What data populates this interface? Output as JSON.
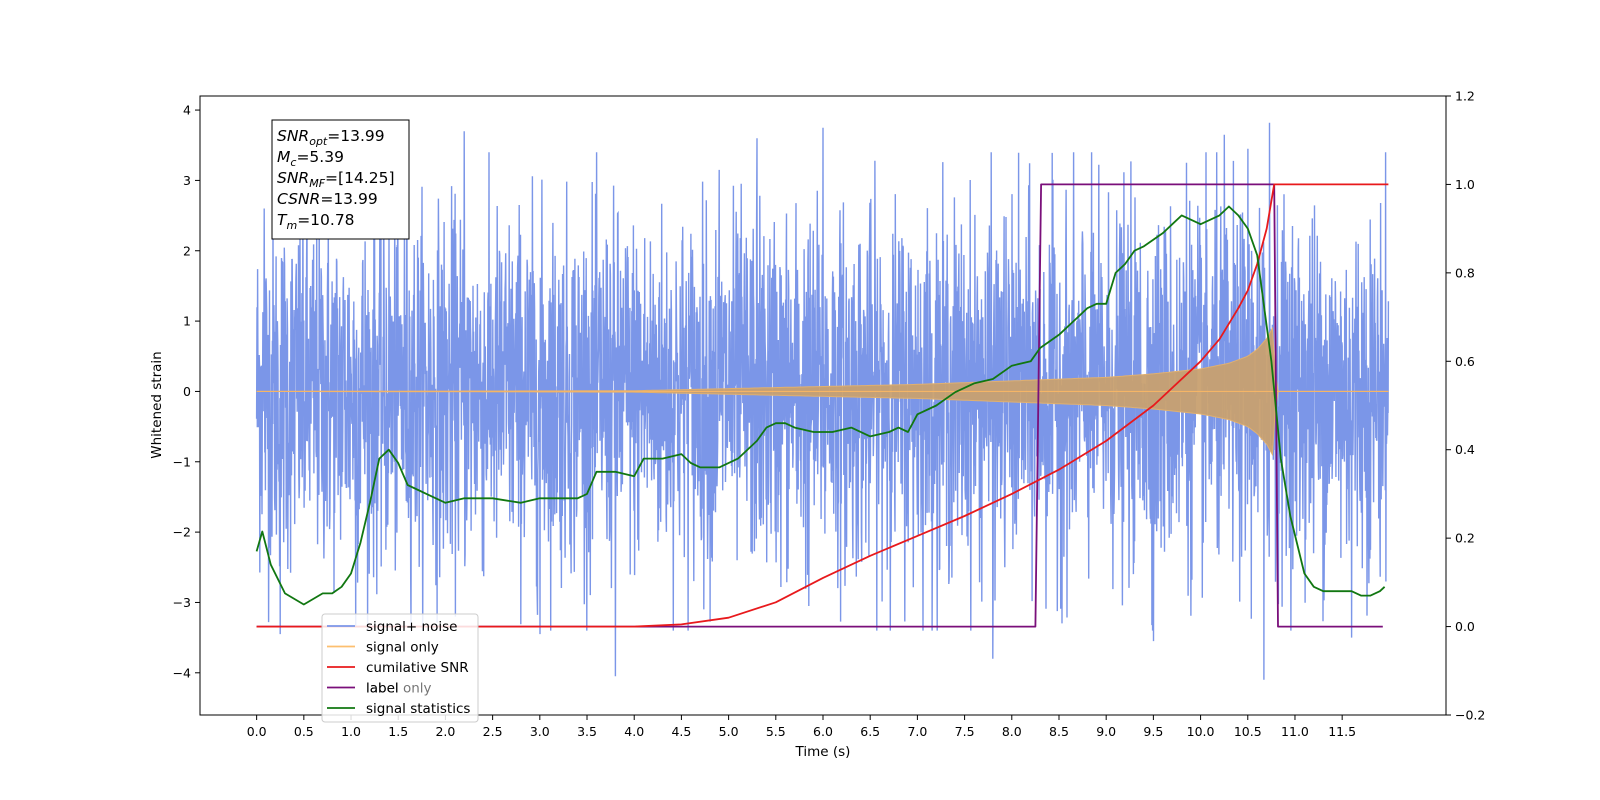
{
  "chart_data": {
    "type": "line",
    "xlabel": "Time (s)",
    "ylabel": "Whitened strain",
    "xlim": [
      -0.6,
      12.6
    ],
    "ylim": [
      -4.6,
      4.2
    ],
    "y2lim": [
      -0.2,
      1.2
    ],
    "x_ticks": [
      0.0,
      0.5,
      1.0,
      1.5,
      2.0,
      2.5,
      3.0,
      3.5,
      4.0,
      4.5,
      5.0,
      5.5,
      6.0,
      6.5,
      7.0,
      7.5,
      8.0,
      8.5,
      9.0,
      9.5,
      10.0,
      10.5,
      11.0,
      11.5
    ],
    "x_tick_labels": [
      "0.0",
      "0.5",
      "1.0",
      "1.5",
      "2.0",
      "2.5",
      "3.0",
      "3.5",
      "4.0",
      "4.5",
      "5.0",
      "5.5",
      "6.0",
      "6.5",
      "7.0",
      "7.5",
      "8.0",
      "8.5",
      "9.0",
      "9.5",
      "10.0",
      "10.5",
      "11.0",
      "11.5"
    ],
    "y_ticks": [
      -4,
      -3,
      -2,
      -1,
      0,
      1,
      2,
      3,
      4
    ],
    "y_tick_labels": [
      "−4",
      "−3",
      "−2",
      "−1",
      "0",
      "1",
      "2",
      "3",
      "4"
    ],
    "y2_ticks": [
      -0.2,
      0.0,
      0.2,
      0.4,
      0.6,
      0.8,
      1.0,
      1.2
    ],
    "y2_tick_labels": [
      "−0.2",
      "0.0",
      "0.2",
      "0.4",
      "0.6",
      "0.8",
      "1.0",
      "1.2"
    ],
    "grid": false,
    "legend_position": "lower-left",
    "legend": [
      {
        "label": "signal+ noise",
        "color": "#7b96e8"
      },
      {
        "label": "signal only",
        "color": "#fdbf6f"
      },
      {
        "label": "cumilative SNR",
        "color": "#e8191c"
      },
      {
        "label": "label",
        "color": "#7a0f7a"
      },
      {
        "label": "signal statistics",
        "color": "#117711"
      }
    ],
    "legend_ghost": [
      "label only"
    ],
    "annotation_lines": [
      {
        "name": "SNR",
        "sub": "opt",
        "value": "=13.99"
      },
      {
        "name": "M",
        "sub": "c",
        "value": "=5.39"
      },
      {
        "name": "SNR",
        "sub": "MF",
        "value": "=[14.25]"
      },
      {
        "name": "CSNR",
        "sub": "",
        "value": "=13.99"
      },
      {
        "name": "T",
        "sub": "m",
        "value": "=10.78"
      }
    ],
    "series": [
      {
        "name": "signal+ noise",
        "axis": "left",
        "color": "#7b96e8",
        "x_range": [
          0.0,
          11.99
        ],
        "envelope_p95": [
          -2.5,
          2.5
        ],
        "spikes": [
          {
            "x": 0.08,
            "y": 2.6
          },
          {
            "x": 0.25,
            "y": -3.45
          },
          {
            "x": 1.05,
            "y": -3.35
          },
          {
            "x": 2.2,
            "y": 3.7
          },
          {
            "x": 3.0,
            "y": -3.45
          },
          {
            "x": 3.8,
            "y": -4.05
          },
          {
            "x": 4.9,
            "y": 3.15
          },
          {
            "x": 5.3,
            "y": 3.6
          },
          {
            "x": 5.85,
            "y": -3.05
          },
          {
            "x": 6.0,
            "y": 3.75
          },
          {
            "x": 7.8,
            "y": -3.8
          },
          {
            "x": 9.5,
            "y": -3.55
          },
          {
            "x": 9.85,
            "y": 3.25
          },
          {
            "x": 10.25,
            "y": 3.65
          },
          {
            "x": 10.5,
            "y": 3.45
          },
          {
            "x": 10.67,
            "y": -4.1
          },
          {
            "x": 10.73,
            "y": 3.82
          },
          {
            "x": 11.6,
            "y": -3.5
          }
        ]
      },
      {
        "name": "signal only",
        "axis": "left",
        "color": "#c8a070",
        "envelope": {
          "x": [
            0.0,
            4.0,
            5.0,
            6.0,
            7.0,
            8.0,
            9.0,
            9.5,
            10.0,
            10.3,
            10.5,
            10.6,
            10.7,
            10.77,
            10.8,
            11.99
          ],
          "amplitude": [
            0.0,
            0.01,
            0.04,
            0.07,
            0.1,
            0.15,
            0.2,
            0.25,
            0.32,
            0.4,
            0.5,
            0.6,
            0.75,
            0.92,
            0.0,
            0.0
          ]
        }
      },
      {
        "name": "cumilative SNR",
        "axis": "right",
        "color": "#e8191c",
        "x": [
          0.0,
          3.5,
          4.0,
          4.5,
          5.0,
          5.5,
          6.0,
          6.5,
          7.0,
          7.5,
          8.0,
          8.5,
          9.0,
          9.5,
          10.0,
          10.2,
          10.4,
          10.5,
          10.6,
          10.7,
          10.78,
          11.99
        ],
        "y": [
          0.0,
          0.0,
          0.0,
          0.005,
          0.02,
          0.055,
          0.11,
          0.16,
          0.205,
          0.25,
          0.3,
          0.355,
          0.42,
          0.5,
          0.6,
          0.65,
          0.72,
          0.76,
          0.82,
          0.9,
          1.0,
          1.0
        ]
      },
      {
        "name": "label",
        "axis": "right",
        "color": "#7a0f7a",
        "x": [
          0.0,
          8.25,
          8.31,
          10.78,
          10.82,
          11.93
        ],
        "y": [
          0.0,
          0.0,
          1.0,
          1.0,
          0.0,
          0.0
        ]
      },
      {
        "name": "signal statistics",
        "axis": "right",
        "color": "#117711",
        "x": [
          0.0,
          0.06,
          0.15,
          0.3,
          0.5,
          0.7,
          0.8,
          0.9,
          1.0,
          1.1,
          1.2,
          1.3,
          1.4,
          1.5,
          1.6,
          1.7,
          1.8,
          2.0,
          2.2,
          2.5,
          2.8,
          3.0,
          3.2,
          3.4,
          3.5,
          3.6,
          3.8,
          4.0,
          4.1,
          4.3,
          4.5,
          4.6,
          4.7,
          4.9,
          5.1,
          5.3,
          5.4,
          5.5,
          5.6,
          5.7,
          5.9,
          6.1,
          6.3,
          6.5,
          6.7,
          6.8,
          6.9,
          7.0,
          7.2,
          7.4,
          7.6,
          7.8,
          8.0,
          8.2,
          8.3,
          8.5,
          8.7,
          8.8,
          8.9,
          9.0,
          9.1,
          9.2,
          9.3,
          9.4,
          9.6,
          9.7,
          9.8,
          10.0,
          10.2,
          10.3,
          10.4,
          10.5,
          10.6,
          10.75,
          10.85,
          10.95,
          11.1,
          11.2,
          11.3,
          11.4,
          11.5,
          11.6,
          11.7,
          11.8,
          11.9,
          11.95
        ],
        "y": [
          0.17,
          0.215,
          0.14,
          0.075,
          0.05,
          0.075,
          0.075,
          0.09,
          0.12,
          0.19,
          0.28,
          0.38,
          0.4,
          0.37,
          0.32,
          0.31,
          0.3,
          0.28,
          0.29,
          0.29,
          0.28,
          0.29,
          0.29,
          0.29,
          0.3,
          0.35,
          0.35,
          0.34,
          0.38,
          0.38,
          0.39,
          0.37,
          0.36,
          0.36,
          0.38,
          0.42,
          0.45,
          0.46,
          0.46,
          0.45,
          0.44,
          0.44,
          0.45,
          0.43,
          0.44,
          0.45,
          0.44,
          0.48,
          0.5,
          0.53,
          0.55,
          0.56,
          0.59,
          0.6,
          0.63,
          0.66,
          0.7,
          0.72,
          0.73,
          0.73,
          0.8,
          0.82,
          0.85,
          0.86,
          0.89,
          0.91,
          0.93,
          0.91,
          0.93,
          0.95,
          0.93,
          0.9,
          0.84,
          0.6,
          0.38,
          0.25,
          0.12,
          0.09,
          0.08,
          0.08,
          0.08,
          0.08,
          0.07,
          0.07,
          0.08,
          0.09
        ]
      }
    ]
  }
}
